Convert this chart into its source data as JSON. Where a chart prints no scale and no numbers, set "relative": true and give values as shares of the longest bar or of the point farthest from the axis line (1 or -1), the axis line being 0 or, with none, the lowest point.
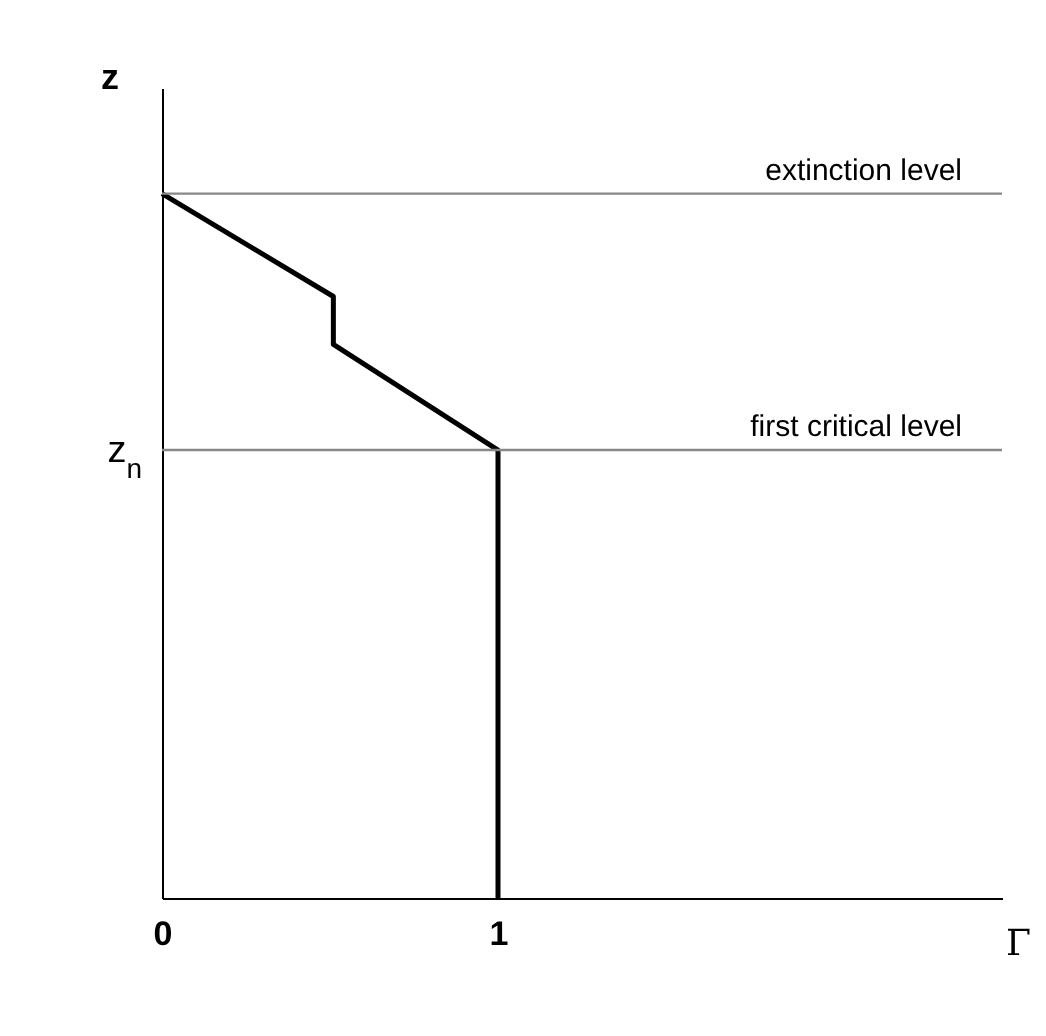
{
  "chart_data": {
    "type": "line",
    "relative": true,
    "xlabel": "Γ",
    "ylabel": "z",
    "x": [
      0,
      0.51,
      0.51,
      1,
      1
    ],
    "series": [
      {
        "color": "#000000",
        "values": [
          1,
          0.854,
          0.786,
          0.636,
          0
        ]
      }
    ],
    "xlim": [
      0,
      2.5
    ],
    "xticks": [
      0,
      1
    ],
    "ref_lines": [
      {
        "axis": "y",
        "value": 1,
        "label": "extinction level",
        "color": "#888888"
      },
      {
        "axis": "y",
        "value": 0.636,
        "label": "first critical level",
        "color": "#888888"
      }
    ],
    "annotations": [
      {
        "text": "z$_{n}$",
        "x": 0,
        "y": 0.636
      }
    ],
    "grid": false,
    "marker": "none",
    "line_style": "solid"
  }
}
